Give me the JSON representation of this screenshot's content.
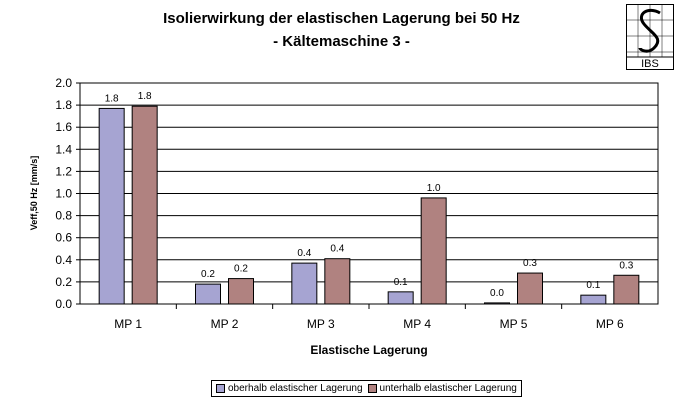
{
  "colors": {
    "series1": "#a6a4d2",
    "series2": "#b08280",
    "axis": "#000000",
    "grid": "#000000"
  },
  "logo": {
    "text": "IBS"
  },
  "chart_data": {
    "type": "bar",
    "title": "Isolierwirkung der elastischen Lagerung bei 50 Hz",
    "subtitle": "- Kältemaschine 3 -",
    "xlabel": "Elastische Lagerung",
    "ylabel": "Veff,50 Hz [mm/s]",
    "ylim": [
      0,
      2.0
    ],
    "yticks": [
      "0.0",
      "0.2",
      "0.4",
      "0.6",
      "0.8",
      "1.0",
      "1.2",
      "1.4",
      "1.6",
      "1.8",
      "2.0"
    ],
    "grid": true,
    "legend_position": "bottom",
    "categories": [
      "MP 1",
      "MP 2",
      "MP 3",
      "MP 4",
      "MP 5",
      "MP 6"
    ],
    "series": [
      {
        "name": "oberhalb elastischer Lagerung",
        "values": [
          1.77,
          0.18,
          0.37,
          0.11,
          0.01,
          0.08
        ],
        "labels": [
          "1.8",
          "0.2",
          "0.4",
          "0.1",
          "0.0",
          "0.1"
        ]
      },
      {
        "name": "unterhalb elastischer Lagerung",
        "values": [
          1.79,
          0.23,
          0.41,
          0.96,
          0.28,
          0.26
        ],
        "labels": [
          "1.8",
          "0.2",
          "0.4",
          "1.0",
          "0.3",
          "0.3"
        ]
      }
    ]
  }
}
